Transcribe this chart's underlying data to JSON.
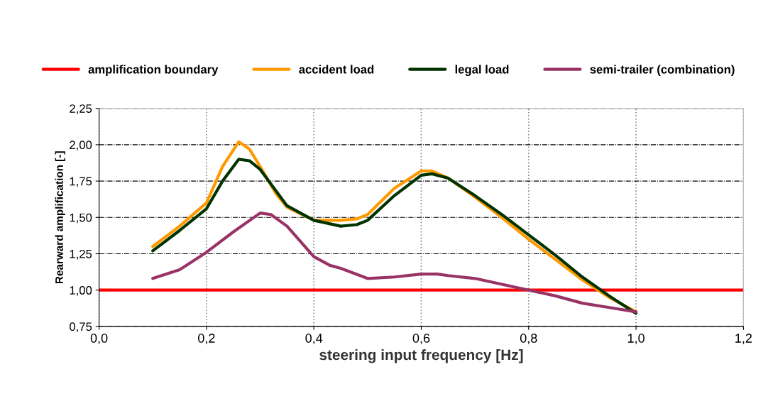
{
  "chart_data": {
    "type": "line",
    "xlabel": "steering input frequency [Hz]",
    "ylabel": "Rearward amplification [-]",
    "xlim": [
      0,
      1.2
    ],
    "ylim": [
      0.75,
      2.25
    ],
    "xticks": [
      {
        "value": 0,
        "label": "0,0"
      },
      {
        "value": 0.2,
        "label": "0,2"
      },
      {
        "value": 0.4,
        "label": "0,4"
      },
      {
        "value": 0.6,
        "label": "0,6"
      },
      {
        "value": 0.8,
        "label": "0,8"
      },
      {
        "value": 1.0,
        "label": "1,0"
      },
      {
        "value": 1.2,
        "label": "1,2"
      }
    ],
    "yticks": [
      {
        "value": 0.75,
        "label": "0,75"
      },
      {
        "value": 1.0,
        "label": "1,00"
      },
      {
        "value": 1.25,
        "label": "1,25"
      },
      {
        "value": 1.5,
        "label": "1,50"
      },
      {
        "value": 1.75,
        "label": "1,75"
      },
      {
        "value": 2.0,
        "label": "2,00"
      },
      {
        "value": 2.25,
        "label": "2,25"
      }
    ],
    "grid": true,
    "legend": "top",
    "marker": "none",
    "line_style": "solid",
    "series": [
      {
        "name": "amplification boundary",
        "color": "#ff0000",
        "x": [
          0,
          1.2
        ],
        "values": [
          1.0,
          1.0
        ]
      },
      {
        "name": "accident load",
        "color": "#ff9900",
        "x": [
          0.1,
          0.15,
          0.2,
          0.23,
          0.26,
          0.28,
          0.3,
          0.33,
          0.35,
          0.4,
          0.45,
          0.48,
          0.5,
          0.55,
          0.6,
          0.62,
          0.65,
          0.7,
          0.75,
          0.8,
          0.85,
          0.9,
          0.95,
          1.0
        ],
        "values": [
          1.3,
          1.44,
          1.6,
          1.85,
          2.02,
          1.97,
          1.85,
          1.66,
          1.57,
          1.48,
          1.48,
          1.49,
          1.52,
          1.7,
          1.82,
          1.82,
          1.77,
          1.64,
          1.5,
          1.35,
          1.21,
          1.07,
          0.95,
          0.85
        ]
      },
      {
        "name": "legal load",
        "color": "#003300",
        "x": [
          0.1,
          0.15,
          0.2,
          0.23,
          0.26,
          0.28,
          0.3,
          0.33,
          0.35,
          0.4,
          0.45,
          0.48,
          0.5,
          0.55,
          0.6,
          0.62,
          0.65,
          0.7,
          0.75,
          0.8,
          0.85,
          0.9,
          0.95,
          1.0
        ],
        "values": [
          1.27,
          1.41,
          1.56,
          1.75,
          1.9,
          1.89,
          1.83,
          1.68,
          1.58,
          1.48,
          1.44,
          1.45,
          1.48,
          1.65,
          1.79,
          1.8,
          1.77,
          1.65,
          1.52,
          1.38,
          1.24,
          1.09,
          0.96,
          0.84
        ]
      },
      {
        "name": "semi-trailer (combination)",
        "color": "#993366",
        "x": [
          0.1,
          0.15,
          0.2,
          0.25,
          0.3,
          0.32,
          0.35,
          0.4,
          0.43,
          0.45,
          0.5,
          0.55,
          0.6,
          0.63,
          0.65,
          0.7,
          0.75,
          0.8,
          0.85,
          0.9,
          0.95,
          1.0
        ],
        "values": [
          1.08,
          1.14,
          1.26,
          1.4,
          1.53,
          1.52,
          1.44,
          1.23,
          1.17,
          1.15,
          1.08,
          1.09,
          1.11,
          1.11,
          1.1,
          1.08,
          1.04,
          1.0,
          0.96,
          0.91,
          0.88,
          0.85
        ]
      }
    ]
  }
}
